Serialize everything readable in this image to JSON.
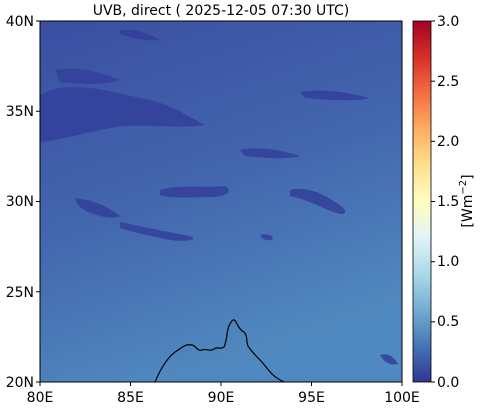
{
  "title": "UVB, direct ( 2025-12-05 07:30 UTC)",
  "x_ticks": [
    "80E",
    "85E",
    "90E",
    "95E",
    "100E"
  ],
  "y_ticks": [
    "40N",
    "35N",
    "30N",
    "25N",
    "20N"
  ],
  "colorbar": {
    "label_main": "[Wm",
    "label_exp": "−2",
    "label_end": "]",
    "ticks": [
      "3.0",
      "2.5",
      "2.0",
      "1.5",
      "1.0",
      "0.5",
      "0.0"
    ],
    "range": [
      0.0,
      3.0
    ],
    "colormap": "RdYlBu_r",
    "colors": [
      "#313695",
      "#4575b4",
      "#74add1",
      "#abd9e9",
      "#e0f3f8",
      "#ffffbf",
      "#fee090",
      "#fdae61",
      "#f46d43",
      "#d73027",
      "#a50026"
    ]
  },
  "map": {
    "lon_range": [
      80,
      100
    ],
    "lat_range": [
      20,
      40
    ],
    "field_color_low": "#3d58a6",
    "field_color_high": "#4f86bd",
    "coastline": "Bay of Bengal / Bangladesh coast"
  }
}
